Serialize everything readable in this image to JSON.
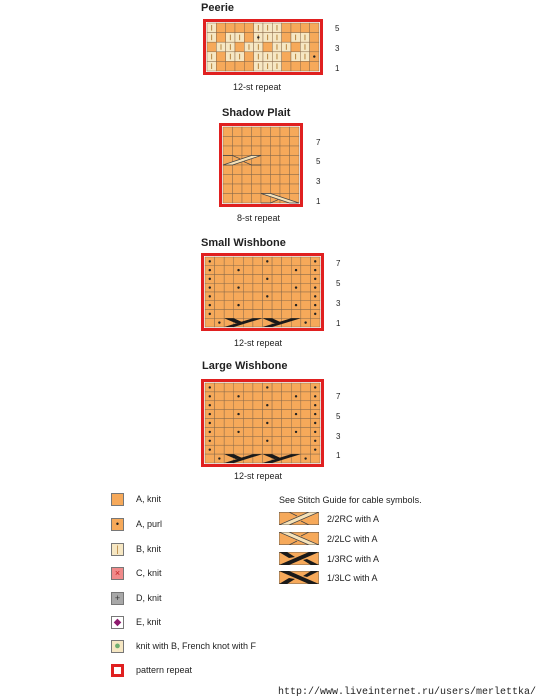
{
  "colors": {
    "a_orange": "#f6a95a",
    "b_cream": "#f6e7c3",
    "c_pink": "#f08a8a",
    "d_gray": "#a8a8a8",
    "e_purple": "#8e1a6e",
    "french_knot_green": "#8cc28c",
    "repeat_red": "#e02020",
    "grid_line": "#8a6a4a"
  },
  "charts": [
    {
      "title": "Peerie",
      "repeat_label": "12-st repeat",
      "row_numbers": [
        "5",
        "3",
        "1"
      ],
      "stitches": 12,
      "rows": [
        "BAAAABBBAAAA",
        "BABBABBBABBA",
        "ABBABBABBABA",
        "BABBABBBABBA",
        "BAAAABBBAAAA"
      ]
    },
    {
      "title": "Shadow Plait",
      "repeat_label": "8-st repeat",
      "row_numbers": [
        "7",
        "5",
        "3",
        "1"
      ],
      "stitches": 8,
      "rows_count": 8
    },
    {
      "title": "Small Wishbone",
      "repeat_label": "12-st repeat",
      "row_numbers": [
        "7",
        "5",
        "3",
        "1"
      ],
      "stitches": 12,
      "rows_count": 8
    },
    {
      "title": "Large Wishbone",
      "repeat_label": "12-st repeat",
      "row_numbers": [
        "7",
        "5",
        "3",
        "1"
      ],
      "stitches": 12,
      "rows_count": 9
    }
  ],
  "legend": [
    {
      "label": "A, knit",
      "symbol": "",
      "color_key": "a_orange"
    },
    {
      "label": "A, purl",
      "symbol": "•",
      "color_key": "a_orange"
    },
    {
      "label": "B, knit",
      "symbol": "|",
      "color_key": "b_cream"
    },
    {
      "label": "C, knit",
      "symbol": "×",
      "color_key": "c_pink"
    },
    {
      "label": "D, knit",
      "symbol": "+",
      "color_key": "d_gray"
    },
    {
      "label": "E, knit",
      "symbol": "◆",
      "color_key": "e_purple"
    },
    {
      "label": "knit with B, French knot with F",
      "symbol": "●",
      "color_key": "french_knot_green"
    },
    {
      "label": "pattern repeat",
      "symbol": "",
      "color_key": "repeat_red"
    }
  ],
  "cable_note": "See Stitch Guide for cable symbols.",
  "cables": [
    {
      "label": "2/2RC with A",
      "icon": "cable-2-2rc-icon"
    },
    {
      "label": "2/2LC with A",
      "icon": "cable-2-2lc-icon"
    },
    {
      "label": "1/3RC with A",
      "icon": "cable-1-3rc-icon"
    },
    {
      "label": "1/3LC with A",
      "icon": "cable-1-3lc-icon"
    }
  ],
  "footer_url": "http://www.liveinternet.ru/users/merlettka/"
}
